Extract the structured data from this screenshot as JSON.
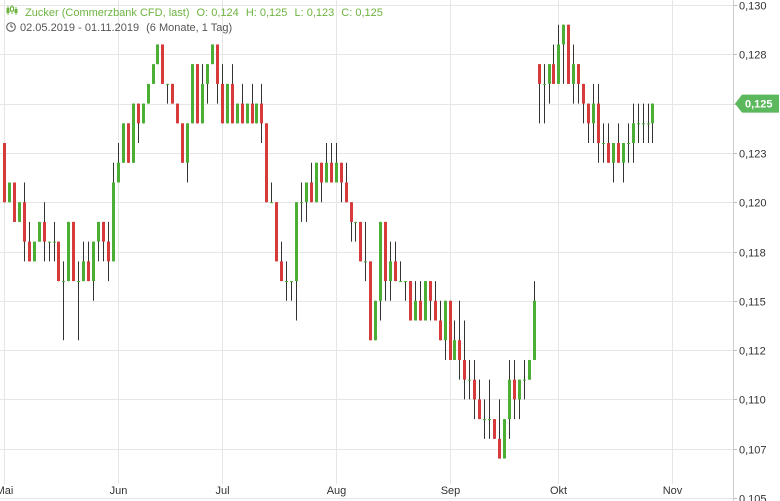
{
  "header": {
    "instrument": "Zucker (Commerzbank CFD, last)",
    "open": "O: 0,124",
    "high": "H: 0,125",
    "low": "L: 0,123",
    "close": "C: 0,125",
    "range": "02.05.2019 - 01.11.2019",
    "period": "(6 Monate, 1 Tag)"
  },
  "chart_data": {
    "type": "candlestick",
    "ylim": [
      0.105,
      0.13
    ],
    "yticks": [
      {
        "v": 0.13,
        "label": "0,130"
      },
      {
        "v": 0.1275,
        "label": "0,128"
      },
      {
        "v": 0.125,
        "label": "0,125"
      },
      {
        "v": 0.1225,
        "label": "0,123"
      },
      {
        "v": 0.12,
        "label": "0,120"
      },
      {
        "v": 0.1175,
        "label": "0,118"
      },
      {
        "v": 0.115,
        "label": "0,115"
      },
      {
        "v": 0.1125,
        "label": "0,112"
      },
      {
        "v": 0.11,
        "label": "0,110"
      },
      {
        "v": 0.1075,
        "label": "0,107"
      },
      {
        "v": 0.105,
        "label": "0,105"
      }
    ],
    "xticks": [
      {
        "i": 0,
        "label": "Mai"
      },
      {
        "i": 23,
        "label": "Jun"
      },
      {
        "i": 44,
        "label": "Jul"
      },
      {
        "i": 67,
        "label": "Aug"
      },
      {
        "i": 90,
        "label": "Sep"
      },
      {
        "i": 112,
        "label": "Okt"
      },
      {
        "i": 135,
        "label": "Nov"
      }
    ],
    "last_value_label": "0,125",
    "colors": {
      "up": "#4caf35",
      "down": "#d63a3a",
      "last_bg": "#5cb85c",
      "grid": "#e6e6e6"
    },
    "candles": [
      [
        0.123,
        0.123,
        0.12,
        0.12
      ],
      [
        0.12,
        0.121,
        0.12,
        0.121
      ],
      [
        0.121,
        0.121,
        0.119,
        0.119
      ],
      [
        0.119,
        0.12,
        0.119,
        0.12
      ],
      [
        0.12,
        0.121,
        0.117,
        0.118
      ],
      [
        0.118,
        0.119,
        0.117,
        0.117
      ],
      [
        0.117,
        0.118,
        0.117,
        0.118
      ],
      [
        0.118,
        0.119,
        0.118,
        0.119
      ],
      [
        0.119,
        0.12,
        0.117,
        0.118
      ],
      [
        0.118,
        0.118,
        0.117,
        0.118
      ],
      [
        0.118,
        0.119,
        0.117,
        0.118
      ],
      [
        0.118,
        0.118,
        0.116,
        0.116
      ],
      [
        0.116,
        0.117,
        0.113,
        0.116
      ],
      [
        0.116,
        0.119,
        0.116,
        0.119
      ],
      [
        0.119,
        0.119,
        0.116,
        0.116
      ],
      [
        0.116,
        0.117,
        0.113,
        0.116
      ],
      [
        0.116,
        0.118,
        0.116,
        0.117
      ],
      [
        0.117,
        0.118,
        0.116,
        0.116
      ],
      [
        0.116,
        0.118,
        0.115,
        0.118
      ],
      [
        0.118,
        0.119,
        0.117,
        0.119
      ],
      [
        0.119,
        0.119,
        0.117,
        0.118
      ],
      [
        0.118,
        0.119,
        0.116,
        0.117
      ],
      [
        0.117,
        0.122,
        0.117,
        0.121
      ],
      [
        0.121,
        0.123,
        0.121,
        0.122
      ],
      [
        0.122,
        0.124,
        0.122,
        0.124
      ],
      [
        0.124,
        0.124,
        0.122,
        0.122
      ],
      [
        0.122,
        0.125,
        0.122,
        0.125
      ],
      [
        0.125,
        0.125,
        0.123,
        0.124
      ],
      [
        0.124,
        0.125,
        0.124,
        0.125
      ],
      [
        0.125,
        0.126,
        0.125,
        0.126
      ],
      [
        0.126,
        0.127,
        0.126,
        0.127
      ],
      [
        0.127,
        0.128,
        0.127,
        0.128
      ],
      [
        0.128,
        0.128,
        0.126,
        0.126
      ],
      [
        0.126,
        0.126,
        0.125,
        0.126
      ],
      [
        0.126,
        0.126,
        0.125,
        0.125
      ],
      [
        0.125,
        0.125,
        0.124,
        0.124
      ],
      [
        0.124,
        0.124,
        0.122,
        0.122
      ],
      [
        0.122,
        0.124,
        0.121,
        0.124
      ],
      [
        0.124,
        0.127,
        0.124,
        0.127
      ],
      [
        0.127,
        0.127,
        0.124,
        0.124
      ],
      [
        0.124,
        0.127,
        0.124,
        0.126
      ],
      [
        0.126,
        0.127,
        0.125,
        0.127
      ],
      [
        0.127,
        0.128,
        0.127,
        0.128
      ],
      [
        0.128,
        0.128,
        0.125,
        0.126
      ],
      [
        0.126,
        0.127,
        0.124,
        0.124
      ],
      [
        0.124,
        0.126,
        0.124,
        0.126
      ],
      [
        0.126,
        0.127,
        0.124,
        0.124
      ],
      [
        0.124,
        0.125,
        0.124,
        0.125
      ],
      [
        0.125,
        0.126,
        0.124,
        0.124
      ],
      [
        0.124,
        0.125,
        0.124,
        0.125
      ],
      [
        0.125,
        0.126,
        0.124,
        0.124
      ],
      [
        0.124,
        0.125,
        0.124,
        0.125
      ],
      [
        0.125,
        0.126,
        0.123,
        0.124
      ],
      [
        0.124,
        0.124,
        0.12,
        0.12
      ],
      [
        0.12,
        0.121,
        0.12,
        0.12
      ],
      [
        0.12,
        0.12,
        0.117,
        0.117
      ],
      [
        0.117,
        0.118,
        0.116,
        0.116
      ],
      [
        0.116,
        0.117,
        0.115,
        0.116
      ],
      [
        0.116,
        0.116,
        0.115,
        0.116
      ],
      [
        0.116,
        0.12,
        0.114,
        0.12
      ],
      [
        0.12,
        0.121,
        0.119,
        0.12
      ],
      [
        0.12,
        0.121,
        0.119,
        0.121
      ],
      [
        0.121,
        0.122,
        0.12,
        0.12
      ],
      [
        0.12,
        0.122,
        0.12,
        0.122
      ],
      [
        0.122,
        0.122,
        0.12,
        0.121
      ],
      [
        0.121,
        0.123,
        0.121,
        0.122
      ],
      [
        0.122,
        0.123,
        0.121,
        0.121
      ],
      [
        0.121,
        0.123,
        0.121,
        0.122
      ],
      [
        0.122,
        0.122,
        0.12,
        0.121
      ],
      [
        0.121,
        0.122,
        0.12,
        0.12
      ],
      [
        0.12,
        0.12,
        0.118,
        0.119
      ],
      [
        0.119,
        0.119,
        0.118,
        0.119
      ],
      [
        0.119,
        0.119,
        0.117,
        0.117
      ],
      [
        0.117,
        0.119,
        0.116,
        0.117
      ],
      [
        0.117,
        0.117,
        0.113,
        0.113
      ],
      [
        0.113,
        0.115,
        0.113,
        0.115
      ],
      [
        0.115,
        0.119,
        0.114,
        0.119
      ],
      [
        0.119,
        0.119,
        0.115,
        0.116
      ],
      [
        0.116,
        0.118,
        0.115,
        0.117
      ],
      [
        0.117,
        0.118,
        0.116,
        0.116
      ],
      [
        0.116,
        0.117,
        0.116,
        0.116
      ],
      [
        0.116,
        0.116,
        0.115,
        0.116
      ],
      [
        0.116,
        0.116,
        0.114,
        0.114
      ],
      [
        0.114,
        0.116,
        0.114,
        0.115
      ],
      [
        0.115,
        0.116,
        0.114,
        0.114
      ],
      [
        0.114,
        0.116,
        0.114,
        0.116
      ],
      [
        0.116,
        0.116,
        0.114,
        0.115
      ],
      [
        0.115,
        0.116,
        0.114,
        0.114
      ],
      [
        0.114,
        0.115,
        0.113,
        0.113
      ],
      [
        0.113,
        0.115,
        0.112,
        0.115
      ],
      [
        0.115,
        0.115,
        0.112,
        0.112
      ],
      [
        0.112,
        0.114,
        0.112,
        0.113
      ],
      [
        0.113,
        0.115,
        0.111,
        0.112
      ],
      [
        0.112,
        0.114,
        0.11,
        0.111
      ],
      [
        0.111,
        0.112,
        0.11,
        0.111
      ],
      [
        0.111,
        0.112,
        0.109,
        0.11
      ],
      [
        0.11,
        0.111,
        0.109,
        0.109
      ],
      [
        0.109,
        0.11,
        0.108,
        0.109
      ],
      [
        0.109,
        0.111,
        0.108,
        0.109
      ],
      [
        0.109,
        0.109,
        0.108,
        0.108
      ],
      [
        0.108,
        0.11,
        0.107,
        0.107
      ],
      [
        0.107,
        0.109,
        0.107,
        0.109
      ],
      [
        0.109,
        0.112,
        0.108,
        0.111
      ],
      [
        0.111,
        0.112,
        0.109,
        0.11
      ],
      [
        0.11,
        0.111,
        0.109,
        0.111
      ],
      [
        0.111,
        0.112,
        0.11,
        0.111
      ],
      [
        0.111,
        0.112,
        0.111,
        0.112
      ],
      [
        0.112,
        0.116,
        0.112,
        0.115
      ],
      [
        0.127,
        0.127,
        0.124,
        0.126
      ],
      [
        0.126,
        0.127,
        0.124,
        0.126
      ],
      [
        0.126,
        0.127,
        0.125,
        0.127
      ],
      [
        0.127,
        0.128,
        0.126,
        0.126
      ],
      [
        0.126,
        0.129,
        0.126,
        0.128
      ],
      [
        0.128,
        0.129,
        0.126,
        0.129
      ],
      [
        0.129,
        0.129,
        0.126,
        0.126
      ],
      [
        0.126,
        0.128,
        0.125,
        0.127
      ],
      [
        0.127,
        0.127,
        0.125,
        0.126
      ],
      [
        0.126,
        0.126,
        0.124,
        0.125
      ],
      [
        0.125,
        0.125,
        0.123,
        0.124
      ],
      [
        0.124,
        0.126,
        0.123,
        0.125
      ],
      [
        0.125,
        0.126,
        0.122,
        0.123
      ],
      [
        0.123,
        0.124,
        0.122,
        0.123
      ],
      [
        0.123,
        0.124,
        0.122,
        0.122
      ],
      [
        0.122,
        0.123,
        0.121,
        0.123
      ],
      [
        0.123,
        0.124,
        0.122,
        0.122
      ],
      [
        0.122,
        0.123,
        0.121,
        0.123
      ],
      [
        0.123,
        0.124,
        0.122,
        0.123
      ],
      [
        0.123,
        0.125,
        0.122,
        0.124
      ],
      [
        0.124,
        0.125,
        0.123,
        0.124
      ],
      [
        0.124,
        0.125,
        0.123,
        0.124
      ],
      [
        0.124,
        0.125,
        0.123,
        0.124
      ],
      [
        0.124,
        0.125,
        0.123,
        0.125
      ]
    ]
  }
}
